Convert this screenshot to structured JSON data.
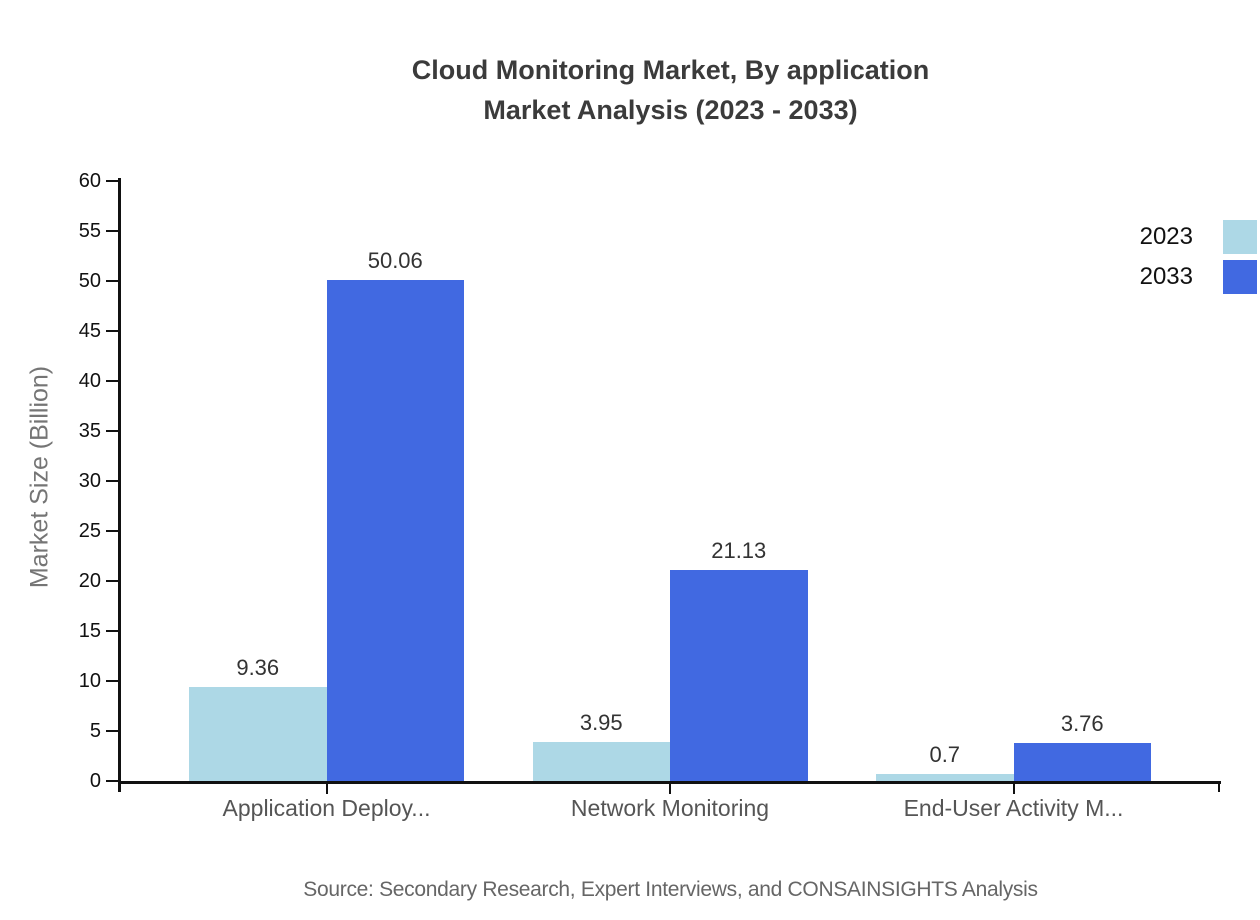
{
  "chart": {
    "title_line1": "Cloud Monitoring Market, By application",
    "title_line2": "Market Analysis (2023 - 2033)",
    "source": "Source: Secondary Research, Expert Interviews, and CONSAINSIGHTS Analysis"
  },
  "chart_data": {
    "type": "bar",
    "title": "Cloud Monitoring Market, By application Market Analysis (2023 - 2033)",
    "categories": [
      "Application Deploy...",
      "Network Monitoring",
      "End-User Activity M..."
    ],
    "series": [
      {
        "name": "2023",
        "color": "#ADD8E6",
        "values": [
          9.36,
          3.95,
          0.7
        ]
      },
      {
        "name": "2033",
        "color": "#4169E1",
        "values": [
          50.06,
          21.13,
          3.76
        ]
      }
    ],
    "xlabel": "",
    "ylabel": "Market Size (Billion)",
    "ylim": [
      0,
      60
    ],
    "ytick_step": 5,
    "yticks": [
      0,
      5,
      10,
      15,
      20,
      25,
      30,
      35,
      40,
      45,
      50,
      55,
      60
    ],
    "legend_position": "top-right",
    "grid": false,
    "axis_color": "#111111",
    "value_label_color": "#333333",
    "category_label_color": "#555555"
  }
}
